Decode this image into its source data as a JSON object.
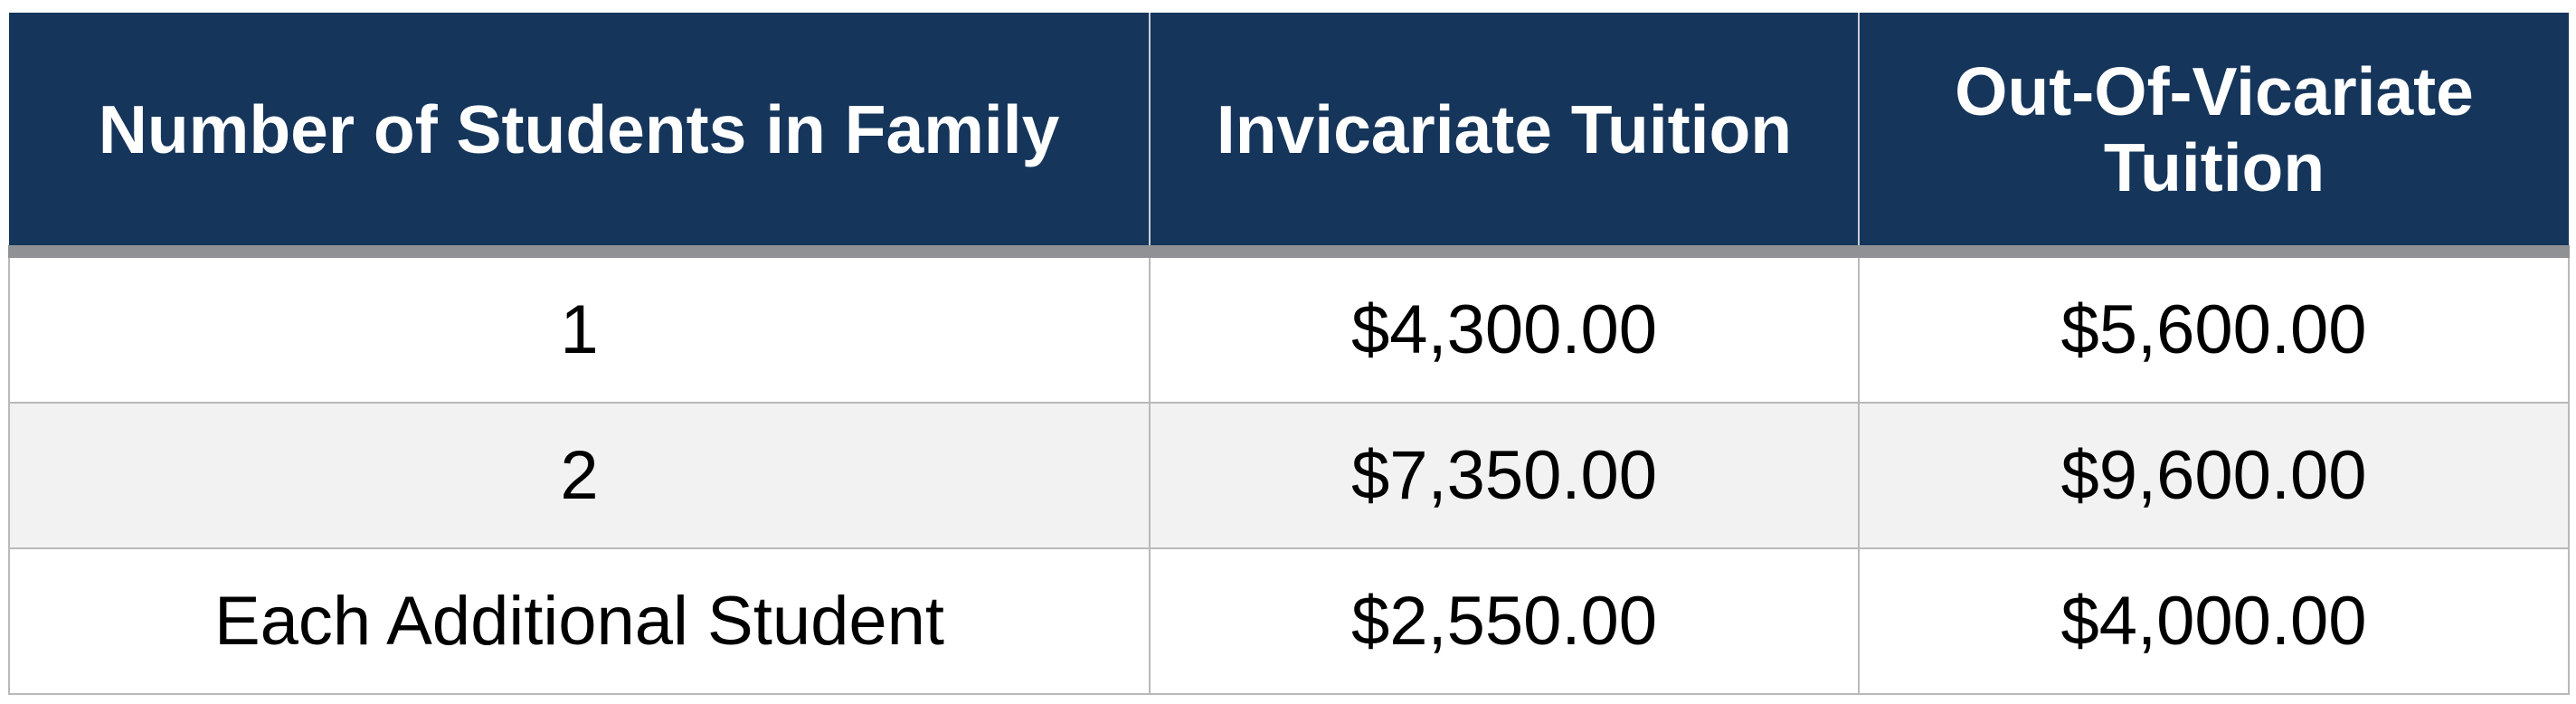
{
  "table": {
    "headers": [
      "Number of Students in Family",
      "Invicariate Tuition",
      "Out-Of-Vicariate Tuition"
    ],
    "rows": [
      [
        "1",
        "$4,300.00",
        "$5,600.00"
      ],
      [
        "2",
        "$7,350.00",
        "$9,600.00"
      ],
      [
        "Each Additional Student",
        "$2,550.00",
        "$4,000.00"
      ]
    ]
  },
  "colors": {
    "header_background": "#15355b",
    "header_text": "#ffffff",
    "header_underline": "#8f9194",
    "alt_row_background": "#f2f2f2",
    "border": "#b9b9b9"
  }
}
